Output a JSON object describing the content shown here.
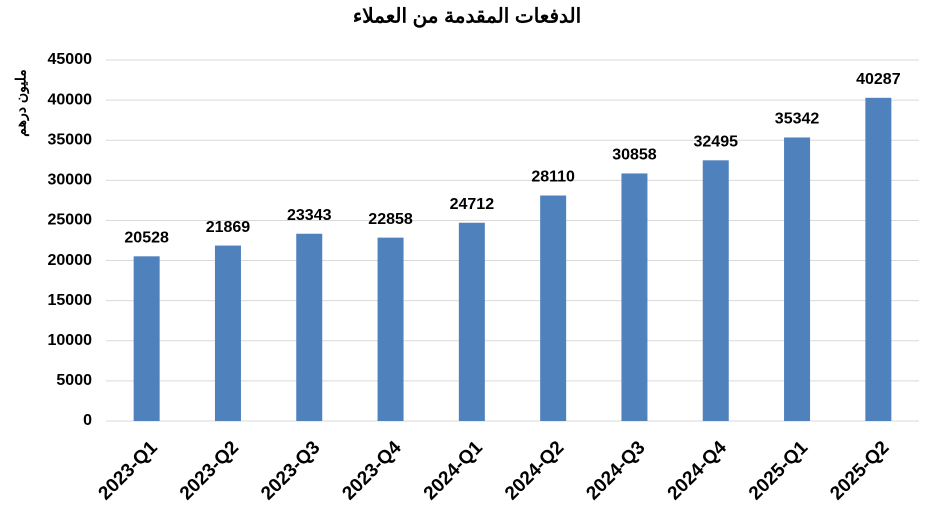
{
  "chart_data": {
    "type": "bar",
    "title": "الدفعات المقدمة من العملاء",
    "y_label": "مليون درهم",
    "categories": [
      "2023-Q1",
      "2023-Q2",
      "2023-Q3",
      "2023-Q4",
      "2024-Q1",
      "2024-Q2",
      "2024-Q3",
      "2024-Q4",
      "2025-Q1",
      "2025-Q2"
    ],
    "values": [
      20528,
      21869,
      23343,
      22858,
      24712,
      28110,
      30858,
      32495,
      35342,
      40287
    ],
    "color": "#4f81bd",
    "ylim": [
      0,
      45000
    ],
    "yticks": [
      0,
      5000,
      10000,
      15000,
      20000,
      25000,
      30000,
      35000,
      40000,
      45000
    ],
    "grid": true
  }
}
